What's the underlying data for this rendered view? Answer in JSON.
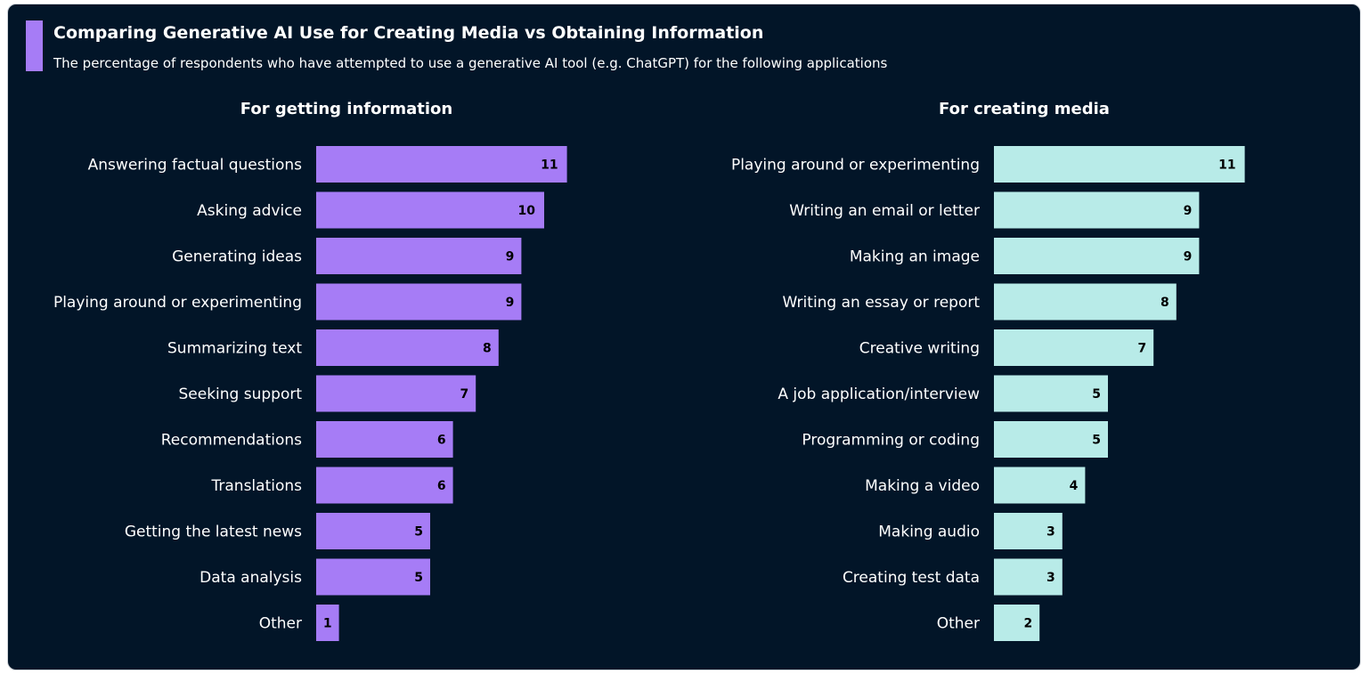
{
  "title": "Comparing Generative AI Use for Creating Media vs Obtaining Information",
  "subtitle": "The percentage of respondents who have attempted to use a generative AI tool (e.g. ChatGPT) for the following applications",
  "colors": {
    "background": "#021528",
    "accent": "#a67cf6",
    "info_bar": "#a67cf6",
    "media_bar": "#b8ebe8"
  },
  "chart_data": [
    {
      "type": "bar",
      "orientation": "horizontal",
      "title": "For getting information",
      "categories": [
        "Answering factual questions",
        "Asking advice",
        "Generating ideas",
        "Playing around or experimenting",
        "Summarizing text",
        "Seeking support",
        "Recommendations",
        "Translations",
        "Getting the latest news",
        "Data analysis",
        "Other"
      ],
      "values": [
        11,
        10,
        9,
        9,
        8,
        7,
        6,
        6,
        5,
        5,
        1
      ],
      "data_labels": true,
      "grid": false,
      "color": "#a67cf6"
    },
    {
      "type": "bar",
      "orientation": "horizontal",
      "title": "For creating media",
      "categories": [
        "Playing around or experimenting",
        "Writing an email or letter",
        "Making an image",
        "Writing an essay or report",
        "Creative writing",
        "A job application/interview",
        "Programming or coding",
        "Making a video",
        "Making audio",
        "Creating test data",
        "Other"
      ],
      "values": [
        11,
        9,
        9,
        8,
        7,
        5,
        5,
        4,
        3,
        3,
        2
      ],
      "data_labels": true,
      "grid": false,
      "color": "#b8ebe8"
    }
  ]
}
